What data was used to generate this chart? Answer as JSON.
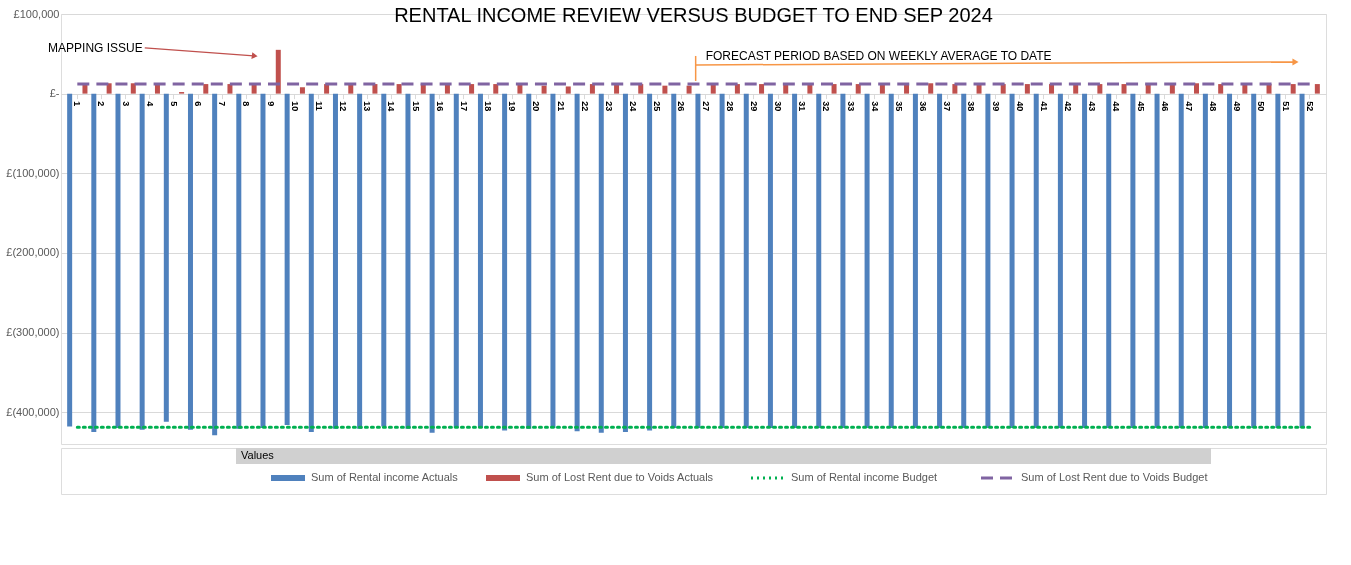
{
  "chart_data": {
    "type": "bar",
    "title": "RENTAL INCOME REVIEW VERSUS BUDGET TO END SEP 2024",
    "categories": [
      "1",
      "2",
      "3",
      "4",
      "5",
      "6",
      "7",
      "8",
      "9",
      "10",
      "11",
      "12",
      "13",
      "14",
      "15",
      "16",
      "17",
      "18",
      "19",
      "20",
      "21",
      "22",
      "23",
      "24",
      "25",
      "26",
      "27",
      "28",
      "29",
      "30",
      "31",
      "32",
      "33",
      "34",
      "35",
      "36",
      "37",
      "38",
      "39",
      "40",
      "41",
      "42",
      "43",
      "44",
      "45",
      "46",
      "47",
      "48",
      "49",
      "50",
      "51",
      "52"
    ],
    "series": [
      {
        "name": "Sum of Rental income Actuals",
        "color": "#4f81bd",
        "values": [
          -418000,
          -425000,
          -420000,
          -422000,
          -412000,
          -422000,
          -429000,
          -421000,
          -420000,
          -416000,
          -425000,
          -421000,
          -421000,
          -418000,
          -421000,
          -426000,
          -420000,
          -420000,
          -423000,
          -421000,
          -420000,
          -424000,
          -426000,
          -425000,
          -423000,
          -420000,
          -420000,
          -420000,
          -420000,
          -420000,
          -420000,
          -420000,
          -420000,
          -420000,
          -420000,
          -420000,
          -420000,
          -420000,
          -420000,
          -420000,
          -420000,
          -420000,
          -420000,
          -420000,
          -420000,
          -420000,
          -420000,
          -420000,
          -420000,
          -420000,
          -420000,
          -420000
        ]
      },
      {
        "name": "Sum of Lost Rent due to Voids Actuals",
        "color": "#c0504d",
        "values": [
          13000,
          13000,
          13000,
          12000,
          2000,
          12000,
          12000,
          12000,
          55000,
          8000,
          12000,
          12000,
          12000,
          12000,
          12000,
          12000,
          12000,
          12000,
          12000,
          10000,
          9000,
          12000,
          12000,
          12000,
          10000,
          10000,
          12000,
          12000,
          12000,
          12000,
          13000,
          12000,
          12000,
          12000,
          12000,
          13000,
          12000,
          12000,
          12000,
          12000,
          12000,
          13000,
          12000,
          12000,
          12000,
          12000,
          13000,
          12000,
          12000,
          12000,
          12000,
          12000
        ]
      },
      {
        "name": "Sum of Rental income Budget",
        "type": "line",
        "line_style": "dotted",
        "color": "#00b050",
        "values": [
          -419000,
          -419000,
          -419000,
          -419000,
          -419000,
          -419000,
          -419000,
          -419000,
          -419000,
          -419000,
          -419000,
          -419000,
          -419000,
          -419000,
          -419000,
          -419000,
          -419000,
          -419000,
          -419000,
          -419000,
          -419000,
          -419000,
          -419000,
          -419000,
          -419000,
          -419000,
          -419000,
          -419000,
          -419000,
          -419000,
          -419000,
          -419000,
          -419000,
          -419000,
          -419000,
          -419000,
          -419000,
          -419000,
          -419000,
          -419000,
          -419000,
          -419000,
          -419000,
          -419000,
          -419000,
          -419000,
          -419000,
          -419000,
          -419000,
          -419000,
          -419000,
          -419000
        ]
      },
      {
        "name": "Sum of Lost Rent due to Voids Budget",
        "type": "line",
        "line_style": "dashed",
        "color": "#8064a2",
        "values": [
          12000,
          12000,
          12000,
          12000,
          12000,
          12000,
          12000,
          12000,
          12000,
          12000,
          12000,
          12000,
          12000,
          12000,
          12000,
          12000,
          12000,
          12000,
          12000,
          12000,
          12000,
          12000,
          12000,
          12000,
          12000,
          12000,
          12000,
          12000,
          12000,
          12000,
          12000,
          12000,
          12000,
          12000,
          12000,
          12000,
          12000,
          12000,
          12000,
          12000,
          12000,
          12000,
          12000,
          12000,
          12000,
          12000,
          12000,
          12000,
          12000,
          12000,
          12000,
          12000
        ]
      }
    ],
    "ylim": [
      -440000,
      100000
    ],
    "yticks": [
      {
        "value": 100000,
        "label": "£100,000"
      },
      {
        "value": 0,
        "label": "£-"
      },
      {
        "value": -100000,
        "label": "£(100,000)"
      },
      {
        "value": -200000,
        "label": "£(200,000)"
      },
      {
        "value": -300000,
        "label": "£(300,000)"
      },
      {
        "value": -400000,
        "label": "£(400,000)"
      }
    ],
    "grid": "y",
    "legend": "bottom",
    "ref_lines": [
      {
        "axis": "x",
        "value": "27",
        "label": "FORECAST PERIOD BASED ON WEEKLY AVERAGE TO DATE",
        "color": "#f79646"
      }
    ],
    "annotations": [
      "MAPPING ISSUE",
      "Values"
    ]
  }
}
